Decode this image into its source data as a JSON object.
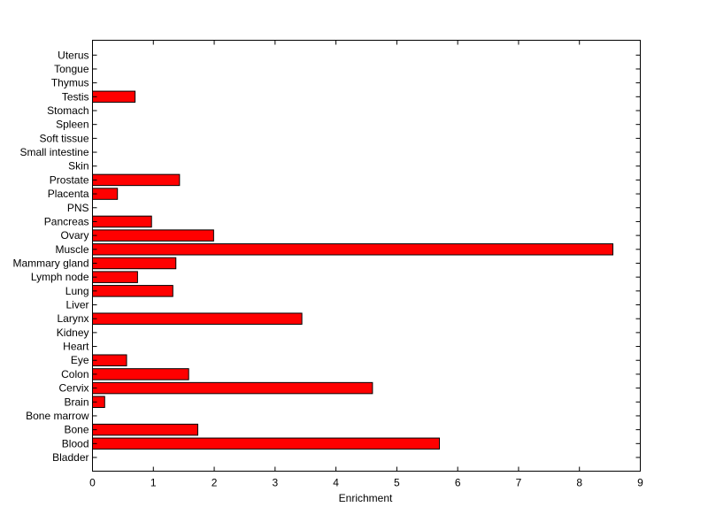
{
  "chart_data": {
    "type": "bar",
    "orientation": "horizontal",
    "title": "",
    "xlabel": "Enrichment",
    "ylabel": "",
    "xlim": [
      0,
      9
    ],
    "xticks": [
      0,
      1,
      2,
      3,
      4,
      5,
      6,
      7,
      8,
      9
    ],
    "grid": false,
    "bar_color": "#ff0000",
    "bar_edge_color": "#000000",
    "categories": [
      "Bladder",
      "Blood",
      "Bone",
      "Bone marrow",
      "Brain",
      "Cervix",
      "Colon",
      "Eye",
      "Heart",
      "Kidney",
      "Larynx",
      "Liver",
      "Lung",
      "Lymph node",
      "Mammary gland",
      "Muscle",
      "Ovary",
      "Pancreas",
      "PNS",
      "Placenta",
      "Prostate",
      "Skin",
      "Small intestine",
      "Soft tissue",
      "Spleen",
      "Stomach",
      "Testis",
      "Thymus",
      "Tongue",
      "Uterus"
    ],
    "values": [
      0,
      5.7,
      1.73,
      0,
      0.2,
      4.6,
      1.58,
      0.56,
      0,
      0,
      3.44,
      0,
      1.32,
      0.74,
      1.37,
      8.55,
      1.99,
      0.97,
      0,
      0.41,
      1.43,
      0,
      0,
      0,
      0,
      0,
      0.7,
      0,
      0,
      0
    ]
  }
}
